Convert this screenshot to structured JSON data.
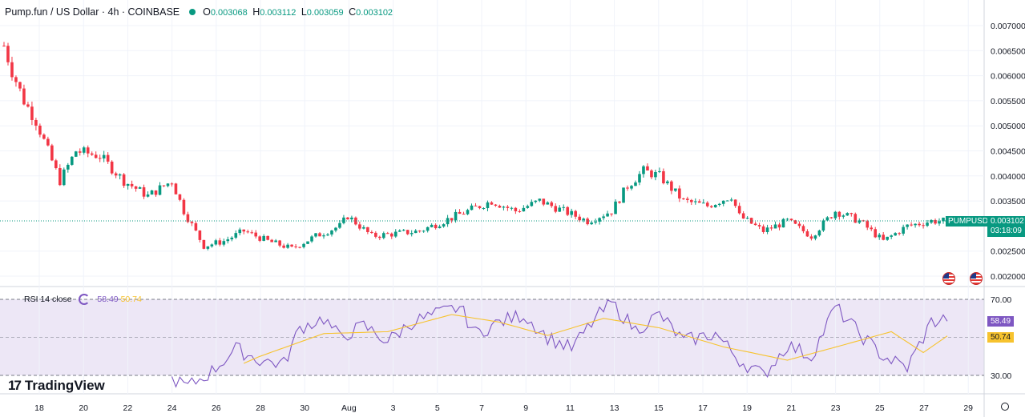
{
  "header": {
    "symbol_title": "Pump.fun / US Dollar · 4h · COINBASE",
    "open_label": "O",
    "open": "0.003068",
    "high_label": "H",
    "high": "0.003112",
    "low_label": "L",
    "low": "0.003059",
    "close_label": "C",
    "close": "0.003102"
  },
  "price_axis": {
    "ticks": [
      "0.007000",
      "0.006500",
      "0.006000",
      "0.005500",
      "0.005000",
      "0.004500",
      "0.004000",
      "0.003500",
      "0.002500",
      "0.002000"
    ],
    "current_symbol": "PUMPUSD",
    "current_price": "0.003102",
    "countdown": "03:18:09"
  },
  "rsi_panel": {
    "label": "RSI 14 close",
    "rsi_value": "58.49",
    "ma_value": "50.74",
    "ticks": [
      "70.00",
      "30.00"
    ],
    "colors": {
      "rsi": "#7e57c2",
      "ma": "#f7c32e",
      "band": "#ede7f6"
    }
  },
  "time_axis": {
    "labels": [
      "18",
      "20",
      "22",
      "24",
      "26",
      "28",
      "30",
      "Aug",
      "3",
      "5",
      "7",
      "9",
      "11",
      "13",
      "15",
      "17",
      "19",
      "21",
      "23",
      "25",
      "27",
      "29"
    ]
  },
  "branding": {
    "logo_text": "TradingView"
  },
  "colors": {
    "up": "#089981",
    "down": "#f23645",
    "grid": "#f0f3fa"
  },
  "chart_data": [
    {
      "type": "candlestick",
      "series_name": "PUMPUSD",
      "interval": "4h",
      "ylim": [
        0.0019,
        0.0072
      ],
      "x_start": "2025-07-17",
      "y_ticks": [
        0.007,
        0.0065,
        0.006,
        0.0055,
        0.005,
        0.0045,
        0.004,
        0.0035,
        0.0025,
        0.002
      ],
      "x_labels": [
        "18",
        "20",
        "22",
        "24",
        "26",
        "28",
        "30",
        "Aug",
        "3",
        "5",
        "7",
        "9",
        "11",
        "13",
        "15",
        "17",
        "19",
        "21",
        "23",
        "25",
        "27",
        "29"
      ],
      "close_path_anchors": [
        [
          0,
          0.0066
        ],
        [
          2,
          0.0061
        ],
        [
          5,
          0.0055
        ],
        [
          8,
          0.0051
        ],
        [
          12,
          0.0043
        ],
        [
          14,
          0.0039
        ],
        [
          18,
          0.0045
        ],
        [
          24,
          0.0044
        ],
        [
          30,
          0.0039
        ],
        [
          36,
          0.0036
        ],
        [
          42,
          0.0039
        ],
        [
          45,
          0.0033
        ],
        [
          50,
          0.0026
        ],
        [
          55,
          0.0027
        ],
        [
          60,
          0.0029
        ],
        [
          66,
          0.0027
        ],
        [
          72,
          0.00255
        ],
        [
          78,
          0.0028
        ],
        [
          84,
          0.003
        ],
        [
          86,
          0.0032
        ],
        [
          92,
          0.0028
        ],
        [
          98,
          0.00285
        ],
        [
          104,
          0.0029
        ],
        [
          110,
          0.0031
        ],
        [
          116,
          0.0033
        ],
        [
          122,
          0.0035
        ],
        [
          128,
          0.0033
        ],
        [
          134,
          0.0035
        ],
        [
          140,
          0.0033
        ],
        [
          146,
          0.0031
        ],
        [
          152,
          0.0033
        ],
        [
          156,
          0.0038
        ],
        [
          160,
          0.0041
        ],
        [
          164,
          0.004
        ],
        [
          170,
          0.0035
        ],
        [
          176,
          0.0034
        ],
        [
          182,
          0.0036
        ],
        [
          184,
          0.0032
        ],
        [
          190,
          0.0029
        ],
        [
          196,
          0.0031
        ],
        [
          202,
          0.0028
        ],
        [
          208,
          0.0033
        ],
        [
          214,
          0.0031
        ],
        [
          220,
          0.0027
        ],
        [
          226,
          0.003
        ],
        [
          232,
          0.0031
        ]
      ],
      "last": {
        "open": 0.003068,
        "high": 0.003112,
        "low": 0.003059,
        "close": 0.003102
      }
    },
    {
      "type": "line",
      "title": "RSI 14 close",
      "ylim": [
        22,
        74
      ],
      "y_ticks": [
        70,
        30
      ],
      "series": [
        {
          "name": "RSI",
          "color": "#7e57c2",
          "anchors": [
            [
              0,
              44
            ],
            [
              10,
              36
            ],
            [
              20,
              46
            ],
            [
              30,
              40
            ],
            [
              40,
              30
            ],
            [
              46,
              24
            ],
            [
              52,
              32
            ],
            [
              58,
              44
            ],
            [
              64,
              38
            ],
            [
              70,
              36
            ],
            [
              74,
              55
            ],
            [
              80,
              60
            ],
            [
              84,
              50
            ],
            [
              90,
              56
            ],
            [
              96,
              48
            ],
            [
              102,
              58
            ],
            [
              108,
              62
            ],
            [
              114,
              66
            ],
            [
              118,
              52
            ],
            [
              124,
              58
            ],
            [
              130,
              62
            ],
            [
              136,
              50
            ],
            [
              142,
              44
            ],
            [
              148,
              60
            ],
            [
              152,
              68
            ],
            [
              158,
              54
            ],
            [
              164,
              62
            ],
            [
              170,
              48
            ],
            [
              178,
              52
            ],
            [
              184,
              38
            ],
            [
              190,
              30
            ],
            [
              196,
              46
            ],
            [
              202,
              40
            ],
            [
              208,
              66
            ],
            [
              214,
              52
            ],
            [
              220,
              40
            ],
            [
              226,
              34
            ],
            [
              232,
              58
            ],
            [
              236,
              60
            ]
          ],
          "last": 58.49
        },
        {
          "name": "RSI-based MA",
          "color": "#f7c32e",
          "anchors": [
            [
              0,
              40
            ],
            [
              20,
              43
            ],
            [
              40,
              33
            ],
            [
              52,
              29
            ],
            [
              64,
              40
            ],
            [
              80,
              52
            ],
            [
              96,
              53
            ],
            [
              112,
              62
            ],
            [
              124,
              58
            ],
            [
              136,
              51
            ],
            [
              150,
              60
            ],
            [
              164,
              55
            ],
            [
              180,
              45
            ],
            [
              196,
              38
            ],
            [
              210,
              46
            ],
            [
              222,
              53
            ],
            [
              230,
              42
            ],
            [
              236,
              50.7
            ]
          ],
          "last": 50.74
        }
      ]
    }
  ]
}
